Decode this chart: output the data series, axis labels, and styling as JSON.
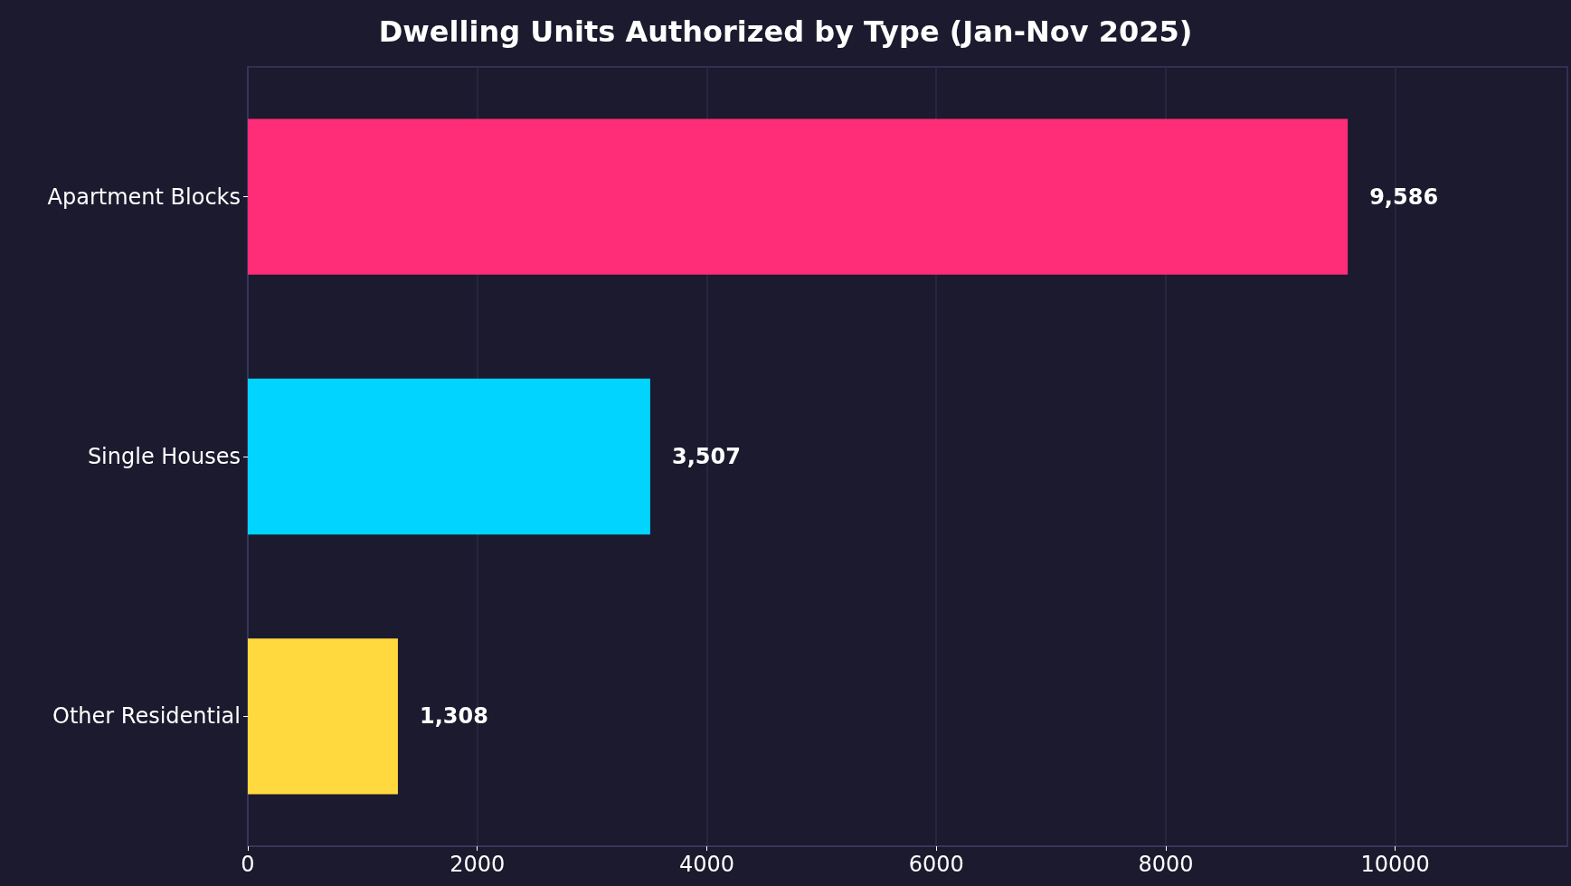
{
  "chart_data": {
    "type": "bar",
    "orientation": "horizontal",
    "title": "Dwelling Units Authorized by Type (Jan-Nov 2025)",
    "categories": [
      "Apartment Blocks",
      "Single Houses",
      "Other Residential"
    ],
    "values": [
      9586,
      3507,
      1308
    ],
    "colors": [
      "#ff2d78",
      "#00d4ff",
      "#ffd93d"
    ],
    "value_labels": [
      "9,586",
      "3,507",
      "1,308"
    ],
    "xlim": [
      0,
      11500
    ],
    "xticks": [
      0,
      2000,
      4000,
      6000,
      8000,
      10000
    ],
    "grid": "x"
  }
}
